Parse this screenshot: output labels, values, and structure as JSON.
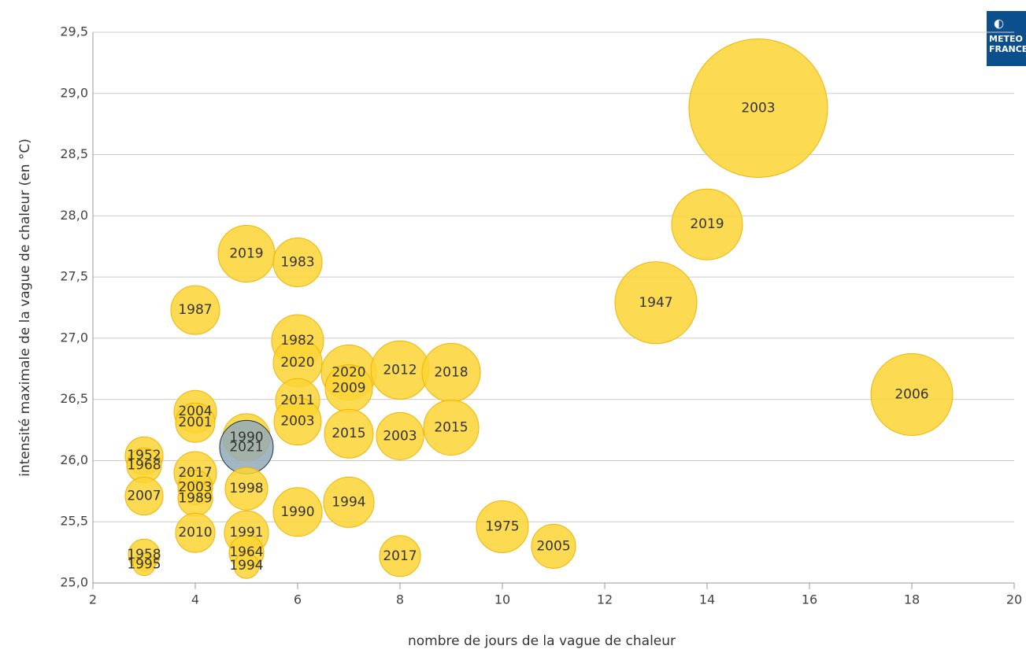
{
  "chart_data": {
    "type": "bubble",
    "xlabel": "nombre de jours de la vague de chaleur",
    "ylabel": "intensité maximale de la vague de chaleur (en °C)",
    "logo": [
      "METEO",
      "FRANCE"
    ],
    "labels": [
      "2003",
      "2019",
      "1947",
      "2006",
      "2019",
      "1983",
      "1987",
      "1982",
      "2020",
      "2020",
      "2012",
      "2018",
      "2009",
      "2011",
      "2004",
      "2001",
      "2003",
      "2015",
      "2003",
      "2015",
      "1990",
      "2021",
      "1952",
      "1968",
      "2017",
      "2003",
      "1998",
      "2007",
      "1989",
      "1994",
      "1990",
      "1975",
      "2010",
      "1991",
      "2005",
      "1958",
      "2017",
      "1964",
      "1995",
      "1994"
    ],
    "x": [
      15,
      14,
      13,
      18,
      5,
      6,
      4,
      6,
      6,
      7,
      8,
      9,
      7,
      6,
      4,
      4,
      6,
      7,
      8,
      9,
      5,
      5,
      3,
      3,
      4,
      4,
      5,
      3,
      4,
      7,
      6,
      10,
      4,
      5,
      11,
      3,
      8,
      5,
      3,
      5
    ],
    "values": [
      28.88,
      27.93,
      27.29,
      26.54,
      27.69,
      27.62,
      27.23,
      26.98,
      26.8,
      26.72,
      26.74,
      26.72,
      26.59,
      26.49,
      26.4,
      26.31,
      26.32,
      26.22,
      26.2,
      26.27,
      26.19,
      26.11,
      26.04,
      25.96,
      25.9,
      25.78,
      25.77,
      25.71,
      25.69,
      25.66,
      25.58,
      25.46,
      25.41,
      25.41,
      25.3,
      25.23,
      25.22,
      25.25,
      25.15,
      25.14
    ],
    "sizes": [
      88,
      45,
      52,
      52,
      36,
      31,
      31,
      33,
      31,
      35,
      37,
      37,
      30,
      28,
      27,
      25,
      30,
      31,
      30,
      35,
      30,
      34,
      24,
      22,
      27,
      22,
      27,
      24,
      22,
      32,
      31,
      33,
      25,
      28,
      28,
      20,
      26,
      22,
      14,
      16
    ],
    "colors": [
      "#fcd535",
      "#fcd535",
      "#fcd535",
      "#fcd535",
      "#fcd535",
      "#fcd535",
      "#fcd535",
      "#fcd535",
      "#fcd535",
      "#fcd535",
      "#fcd535",
      "#fcd535",
      "#fcd535",
      "#fcd535",
      "#fcd535",
      "#fcd535",
      "#fcd535",
      "#fcd535",
      "#fcd535",
      "#fcd535",
      "#fcd535",
      "#93aab9",
      "#fcd535",
      "#fcd535",
      "#fcd535",
      "#fcd535",
      "#fcd535",
      "#fcd535",
      "#fcd535",
      "#fcd535",
      "#fcd535",
      "#fcd535",
      "#fcd535",
      "#fcd535",
      "#fcd535",
      "#fcd535",
      "#fcd535",
      "#fcd535",
      "#fcd535",
      "#fcd535"
    ],
    "xlim": [
      2,
      20
    ],
    "xticks": [
      2,
      4,
      6,
      8,
      10,
      12,
      14,
      16,
      18,
      20
    ],
    "ylim": [
      25,
      29.5
    ],
    "yticks": [
      {
        "value": 25,
        "label": "25,0"
      },
      {
        "value": 25.5,
        "label": "25,5"
      },
      {
        "value": 26,
        "label": "26,0"
      },
      {
        "value": 26.5,
        "label": "26,5"
      },
      {
        "value": 27,
        "label": "27,0"
      },
      {
        "value": 27.5,
        "label": "27,5"
      },
      {
        "value": 28,
        "label": "28,0"
      },
      {
        "value": 28.5,
        "label": "28,5"
      },
      {
        "value": 29,
        "label": "29,0"
      },
      {
        "value": 29.5,
        "label": "29,5"
      }
    ],
    "grid": true
  }
}
